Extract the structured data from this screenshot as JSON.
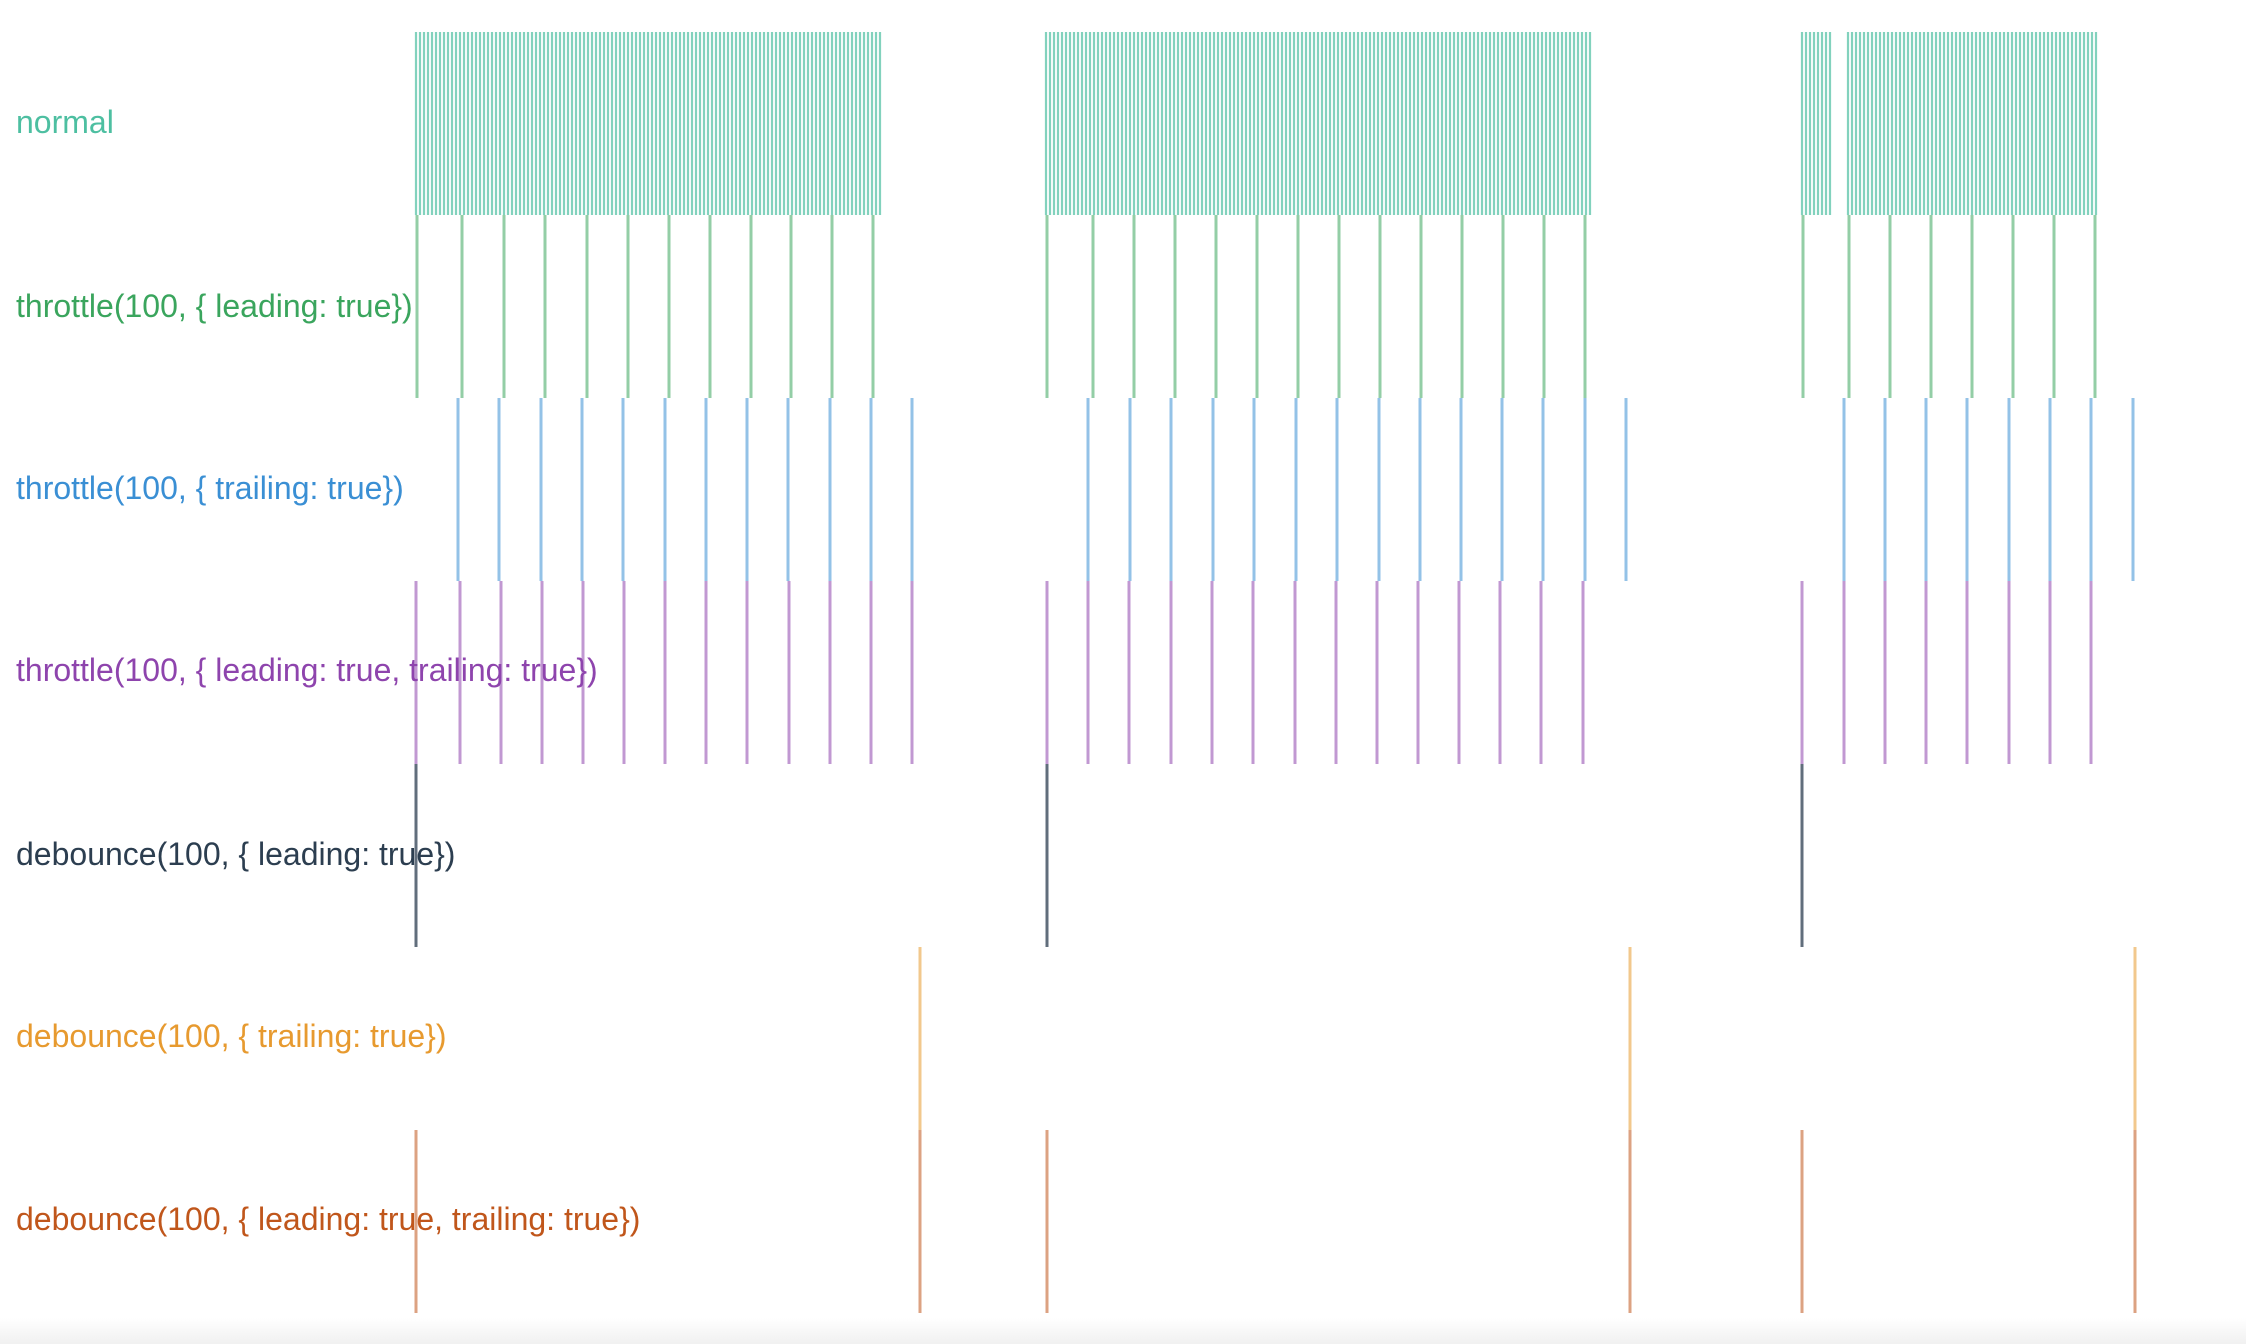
{
  "chart_data": {
    "type": "event-timeline",
    "lanes": [
      {
        "label": "normal",
        "color": "#4dbfa1",
        "events": [
          [
            416,
            420,
            424,
            428,
            432,
            436,
            440,
            444,
            448,
            452,
            456,
            460,
            464,
            468,
            472,
            476,
            480,
            484,
            488,
            492,
            496,
            500,
            504,
            508,
            512,
            516,
            520,
            524,
            528,
            532,
            536,
            540,
            544,
            548,
            552,
            556,
            560,
            564,
            568,
            572,
            576,
            580,
            584,
            588,
            592,
            596,
            600,
            604,
            608,
            612,
            616,
            620,
            624,
            628,
            632,
            636,
            640,
            644,
            648,
            652,
            656,
            660,
            664,
            668,
            672,
            676,
            680,
            684,
            688,
            692,
            696,
            700,
            704,
            708,
            712,
            716,
            720,
            724,
            728,
            732,
            736,
            740,
            744,
            748,
            752,
            756,
            760,
            764,
            768,
            772,
            776,
            780,
            784,
            788,
            792,
            796,
            800,
            804,
            808,
            812,
            816,
            820,
            824,
            828,
            832,
            836,
            840,
            844,
            848,
            852,
            856,
            860,
            864,
            868,
            872,
            876,
            880
          ],
          [
            1046,
            1050,
            1054,
            1058,
            1062,
            1066,
            1070,
            1074,
            1078,
            1082,
            1086,
            1090,
            1094,
            1098,
            1102,
            1106,
            1110,
            1114,
            1118,
            1122,
            1126,
            1130,
            1134,
            1138,
            1142,
            1146,
            1150,
            1154,
            1158,
            1162,
            1166,
            1170,
            1174,
            1178,
            1182,
            1186,
            1190,
            1194,
            1198,
            1202,
            1206,
            1210,
            1214,
            1218,
            1222,
            1226,
            1230,
            1234,
            1238,
            1242,
            1246,
            1250,
            1254,
            1258,
            1262,
            1266,
            1270,
            1274,
            1278,
            1282,
            1286,
            1290,
            1294,
            1298,
            1302,
            1306,
            1310,
            1314,
            1318,
            1322,
            1326,
            1330,
            1334,
            1338,
            1342,
            1346,
            1350,
            1354,
            1358,
            1362,
            1366,
            1370,
            1374,
            1378,
            1382,
            1386,
            1390,
            1394,
            1398,
            1402,
            1406,
            1410,
            1414,
            1418,
            1422,
            1426,
            1430,
            1434,
            1438,
            1442,
            1446,
            1450,
            1454,
            1458,
            1462,
            1466,
            1470,
            1474,
            1478,
            1482,
            1486,
            1490,
            1494,
            1498,
            1502,
            1506,
            1510,
            1514,
            1518,
            1522,
            1526,
            1530,
            1534,
            1538,
            1542,
            1546,
            1550,
            1554,
            1558,
            1562,
            1566,
            1570,
            1574,
            1578,
            1582,
            1586,
            1590
          ],
          [
            1802,
            1806,
            1810,
            1814,
            1818,
            1822,
            1826,
            1830
          ],
          [
            1848,
            1852,
            1856,
            1860,
            1864,
            1868,
            1872,
            1876,
            1880,
            1884,
            1888,
            1892,
            1896,
            1900,
            1904,
            1908,
            1912,
            1916,
            1920,
            1924,
            1928,
            1932,
            1936,
            1940,
            1944,
            1948,
            1952,
            1956,
            1960,
            1964,
            1968,
            1972,
            1976,
            1980,
            1984,
            1988,
            1992,
            1996,
            2000,
            2004,
            2008,
            2012,
            2016,
            2020,
            2024,
            2028,
            2032,
            2036,
            2040,
            2044,
            2048,
            2052,
            2056,
            2060,
            2064,
            2068,
            2072,
            2076,
            2080,
            2084,
            2088,
            2092,
            2096
          ]
        ]
      },
      {
        "label": "throttle(100, { leading: true})",
        "color": "#3aa55d",
        "events": [
          417,
          462,
          504,
          545,
          587,
          628,
          669,
          710,
          751,
          791,
          832,
          873,
          1047,
          1093,
          1134,
          1175,
          1216,
          1257,
          1298,
          1339,
          1380,
          1421,
          1462,
          1503,
          1544,
          1585,
          1803,
          1849,
          1890,
          1931,
          1972,
          2013,
          2054,
          2095
        ]
      },
      {
        "label": "throttle(100, { trailing: true})",
        "color": "#3a8fd4",
        "events": [
          458,
          499,
          541,
          582,
          623,
          665,
          706,
          747,
          788,
          830,
          871,
          912,
          1088,
          1130,
          1171,
          1213,
          1254,
          1296,
          1337,
          1379,
          1420,
          1461,
          1502,
          1543,
          1585,
          1626,
          1844,
          1885,
          1926,
          1967,
          2009,
          2050,
          2091,
          2133
        ]
      },
      {
        "label": "throttle(100, { leading: true, trailing: true})",
        "color": "#8e44ad",
        "events": [
          416,
          460,
          501,
          542,
          583,
          624,
          665,
          706,
          747,
          789,
          830,
          871,
          912,
          1047,
          1088,
          1129,
          1171,
          1212,
          1253,
          1295,
          1336,
          1377,
          1418,
          1459,
          1500,
          1541,
          1583,
          1802,
          1844,
          1885,
          1926,
          1967,
          2009,
          2050,
          2091
        ]
      },
      {
        "label": "debounce(100, { leading: true})",
        "color": "#2c3e50",
        "events": [
          416,
          1047,
          1802
        ]
      },
      {
        "label": "debounce(100, { trailing: true})",
        "color": "#e79a2f",
        "events": [
          920,
          1630,
          2135
        ]
      },
      {
        "label": "debounce(100, { leading: true, trailing: true})",
        "color": "#c0561b",
        "events": [
          416,
          920,
          1047,
          1630,
          1802,
          2135
        ]
      }
    ]
  }
}
